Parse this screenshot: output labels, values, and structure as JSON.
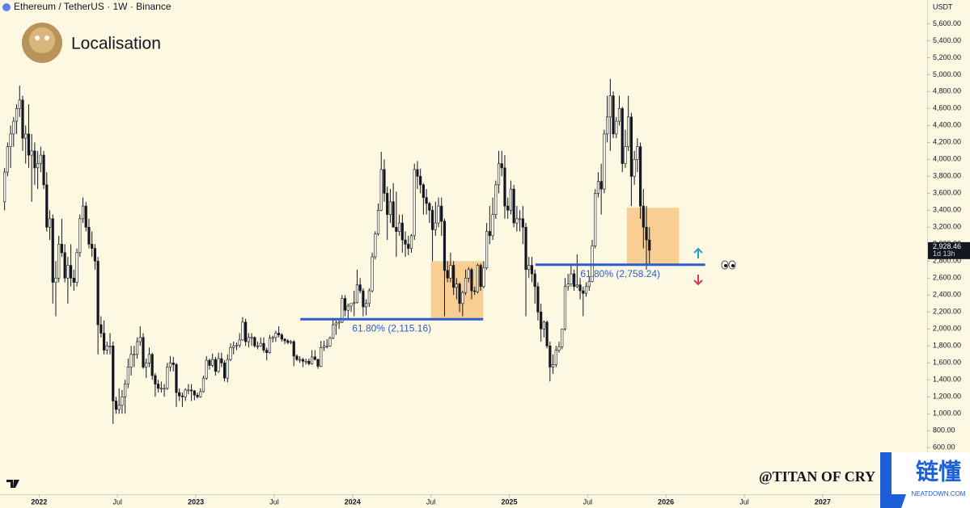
{
  "chart_data": {
    "type": "candlestick",
    "title": "Ethereum / TetherUS · 1W · Binance",
    "subtitle": "Localisation",
    "axis_unit": "USDT",
    "watermark": "@TITAN OF CRY",
    "logo": {
      "text": "链懂",
      "site": "NEATDOWN.COM"
    },
    "up_color": "#fffdf0",
    "down_color": "#131722",
    "grid": false,
    "ylim": [
      50,
      5880
    ],
    "yticks": [
      {
        "value": 600,
        "label": "600.00"
      },
      {
        "value": 800,
        "label": "800.00"
      },
      {
        "value": 1000,
        "label": "1,000.00"
      },
      {
        "value": 1200,
        "label": "1,200.00"
      },
      {
        "value": 1400,
        "label": "1,400.00"
      },
      {
        "value": 1600,
        "label": "1,600.00"
      },
      {
        "value": 1800,
        "label": "1,800.00"
      },
      {
        "value": 2000,
        "label": "2,000.00"
      },
      {
        "value": 2200,
        "label": "2,200.00"
      },
      {
        "value": 2400,
        "label": "2,400.00"
      },
      {
        "value": 2600,
        "label": "2,600.00"
      },
      {
        "value": 2800,
        "label": "2,800.00"
      },
      {
        "value": 3000,
        "label": "3,000.00"
      },
      {
        "value": 3200,
        "label": "3,200.00"
      },
      {
        "value": 3400,
        "label": "3,400.00"
      },
      {
        "value": 3600,
        "label": "3,600.00"
      },
      {
        "value": 3800,
        "label": "3,800.00"
      },
      {
        "value": 4000,
        "label": "4,000.00"
      },
      {
        "value": 4200,
        "label": "4,200.00"
      },
      {
        "value": 4400,
        "label": "4,400.00"
      },
      {
        "value": 4600,
        "label": "4,600.00"
      },
      {
        "value": 4800,
        "label": "4,800.00"
      },
      {
        "value": 5000,
        "label": "5,000.00"
      },
      {
        "value": 5200,
        "label": "5,200.00"
      },
      {
        "value": 5400,
        "label": "5,400.00"
      },
      {
        "value": 5600,
        "label": "5,600.00"
      }
    ],
    "xlim": [
      "2021-10",
      "2027-09"
    ],
    "xticks": [
      {
        "value": "2022-01",
        "label": "2022"
      },
      {
        "value": "2022-07",
        "label": "Jul"
      },
      {
        "value": "2023-01",
        "label": "2023"
      },
      {
        "value": "2023-07",
        "label": "Jul"
      },
      {
        "value": "2024-01",
        "label": "2024"
      },
      {
        "value": "2024-07",
        "label": "Jul"
      },
      {
        "value": "2025-01",
        "label": "2025"
      },
      {
        "value": "2025-07",
        "label": "Jul"
      },
      {
        "value": "2026-01",
        "label": "2026"
      },
      {
        "value": "2026-07",
        "label": "Jul"
      },
      {
        "value": "2027-01",
        "label": "2027"
      }
    ],
    "last_price": {
      "value": 2928.46,
      "label": "2,928.46",
      "countdown": "1d 13h"
    },
    "levels": [
      {
        "value": 2115.16,
        "label": "61.80% (2,115.16)",
        "x": [
          "2023-09",
          "2024-11"
        ],
        "color": "#2d5bd0"
      },
      {
        "value": 2758.24,
        "label": "61.80% (2,758.24)",
        "x": [
          "2025-03",
          "2026-04"
        ],
        "color": "#2d5bd0"
      }
    ],
    "boxes": [
      {
        "x": [
          "2024-07",
          "2024-10"
        ],
        "y": [
          2115,
          2800
        ],
        "color": "#f8c98a"
      },
      {
        "x": [
          "2025-10",
          "2026-01"
        ],
        "y": [
          2758,
          3430
        ],
        "color": "#f8c98a"
      }
    ],
    "candles": [
      [
        3500,
        3900,
        3400,
        3850
      ],
      [
        3850,
        4200,
        3800,
        4150
      ],
      [
        4150,
        4400,
        3900,
        4300
      ],
      [
        4300,
        4500,
        4150,
        4450
      ],
      [
        4450,
        4650,
        4300,
        4600
      ],
      [
        4600,
        4870,
        4500,
        4700
      ],
      [
        4700,
        4750,
        4100,
        4250
      ],
      [
        4250,
        4400,
        3950,
        4300
      ],
      [
        4300,
        4650,
        3900,
        4050
      ],
      [
        4050,
        4300,
        3500,
        4100
      ],
      [
        4100,
        4200,
        3700,
        3900
      ],
      [
        3900,
        4100,
        3650,
        3950
      ],
      [
        3950,
        4150,
        3850,
        4050
      ],
      [
        4050,
        4100,
        3650,
        3700
      ],
      [
        3700,
        3850,
        3150,
        3200
      ],
      [
        3200,
        3400,
        3050,
        3300
      ],
      [
        3300,
        3350,
        2300,
        2550
      ],
      [
        2550,
        2800,
        2150,
        2600
      ],
      [
        2600,
        3100,
        2550,
        3000
      ],
      [
        3000,
        3300,
        2850,
        2900
      ],
      [
        2900,
        3000,
        2550,
        2600
      ],
      [
        2600,
        2850,
        2300,
        2750
      ],
      [
        2750,
        3000,
        2500,
        2600
      ],
      [
        2600,
        2700,
        2450,
        2550
      ],
      [
        2550,
        2950,
        2500,
        2900
      ],
      [
        2900,
        3350,
        2850,
        3300
      ],
      [
        3300,
        3550,
        3250,
        3450
      ],
      [
        3450,
        3500,
        3150,
        3200
      ],
      [
        3200,
        3300,
        2950,
        3000
      ],
      [
        3000,
        3150,
        2850,
        2950
      ],
      [
        2950,
        3000,
        2700,
        2800
      ],
      [
        2800,
        2850,
        1700,
        2050
      ],
      [
        2050,
        2150,
        1900,
        1950
      ],
      [
        1950,
        2100,
        1700,
        1750
      ],
      [
        1750,
        1850,
        1700,
        1800
      ],
      [
        1800,
        1950,
        1700,
        1800
      ],
      [
        1800,
        1850,
        880,
        1150
      ],
      [
        1150,
        1200,
        1000,
        1050
      ],
      [
        1050,
        1300,
        1000,
        1100
      ],
      [
        1100,
        1280,
        1000,
        1200
      ],
      [
        1200,
        1400,
        1000,
        1350
      ],
      [
        1350,
        1650,
        1300,
        1550
      ],
      [
        1550,
        1800,
        1450,
        1700
      ],
      [
        1700,
        1800,
        1550,
        1700
      ],
      [
        1700,
        1900,
        1650,
        1850
      ],
      [
        1850,
        2030,
        1800,
        1900
      ],
      [
        1900,
        1950,
        1530,
        1550
      ],
      [
        1550,
        1650,
        1420,
        1600
      ],
      [
        1600,
        1780,
        1550,
        1700
      ],
      [
        1700,
        1720,
        1400,
        1450
      ],
      [
        1450,
        1480,
        1200,
        1350
      ],
      [
        1350,
        1400,
        1250,
        1300
      ],
      [
        1300,
        1380,
        1250,
        1300
      ],
      [
        1300,
        1350,
        1200,
        1300
      ],
      [
        1300,
        1600,
        1280,
        1550
      ],
      [
        1550,
        1680,
        1500,
        1600
      ],
      [
        1600,
        1670,
        1500,
        1580
      ],
      [
        1580,
        1600,
        1080,
        1250
      ],
      [
        1250,
        1300,
        1150,
        1210
      ],
      [
        1210,
        1250,
        1080,
        1200
      ],
      [
        1200,
        1300,
        1150,
        1280
      ],
      [
        1280,
        1350,
        1230,
        1280
      ],
      [
        1280,
        1350,
        1150,
        1270
      ],
      [
        1270,
        1280,
        1160,
        1220
      ],
      [
        1220,
        1250,
        1180,
        1200
      ],
      [
        1200,
        1300,
        1190,
        1260
      ],
      [
        1260,
        1450,
        1250,
        1420
      ],
      [
        1420,
        1680,
        1400,
        1630
      ],
      [
        1630,
        1650,
        1520,
        1570
      ],
      [
        1570,
        1710,
        1550,
        1640
      ],
      [
        1640,
        1670,
        1450,
        1500
      ],
      [
        1500,
        1720,
        1480,
        1650
      ],
      [
        1650,
        1720,
        1550,
        1600
      ],
      [
        1600,
        1630,
        1380,
        1420
      ],
      [
        1420,
        1700,
        1370,
        1640
      ],
      [
        1640,
        1830,
        1620,
        1780
      ],
      [
        1780,
        1850,
        1700,
        1800
      ],
      [
        1800,
        1840,
        1750,
        1810
      ],
      [
        1810,
        1950,
        1780,
        1870
      ],
      [
        1870,
        2140,
        1860,
        2080
      ],
      [
        2080,
        2120,
        1800,
        1850
      ],
      [
        1850,
        1950,
        1780,
        1900
      ],
      [
        1900,
        1950,
        1800,
        1900
      ],
      [
        1900,
        1910,
        1780,
        1800
      ],
      [
        1800,
        1850,
        1760,
        1800
      ],
      [
        1800,
        1900,
        1790,
        1830
      ],
      [
        1830,
        1900,
        1720,
        1750
      ],
      [
        1750,
        1780,
        1630,
        1720
      ],
      [
        1720,
        1930,
        1710,
        1890
      ],
      [
        1890,
        1920,
        1840,
        1900
      ],
      [
        1900,
        1980,
        1850,
        1950
      ],
      [
        1950,
        2030,
        1900,
        1930
      ],
      [
        1930,
        1950,
        1850,
        1880
      ],
      [
        1880,
        1890,
        1820,
        1860
      ],
      [
        1860,
        1880,
        1820,
        1840
      ],
      [
        1840,
        1870,
        1820,
        1850
      ],
      [
        1850,
        1870,
        1560,
        1680
      ],
      [
        1680,
        1700,
        1620,
        1640
      ],
      [
        1640,
        1680,
        1600,
        1640
      ],
      [
        1640,
        1660,
        1550,
        1620
      ],
      [
        1620,
        1650,
        1580,
        1620
      ],
      [
        1620,
        1650,
        1570,
        1590
      ],
      [
        1590,
        1750,
        1580,
        1670
      ],
      [
        1670,
        1750,
        1630,
        1640
      ],
      [
        1640,
        1650,
        1530,
        1560
      ],
      [
        1560,
        1860,
        1550,
        1780
      ],
      [
        1780,
        1860,
        1740,
        1800
      ],
      [
        1800,
        1880,
        1770,
        1800
      ],
      [
        1800,
        1910,
        1790,
        1890
      ],
      [
        1890,
        2130,
        1880,
        2050
      ],
      [
        2050,
        2100,
        1930,
        2070
      ],
      [
        2070,
        2100,
        2000,
        2080
      ],
      [
        2080,
        2400,
        2070,
        2360
      ],
      [
        2360,
        2400,
        2150,
        2220
      ],
      [
        2220,
        2300,
        2120,
        2270
      ],
      [
        2270,
        2300,
        2200,
        2300
      ],
      [
        2300,
        2450,
        2150,
        2310
      ],
      [
        2310,
        2700,
        2300,
        2520
      ],
      [
        2520,
        2600,
        2420,
        2450
      ],
      [
        2450,
        2480,
        2150,
        2260
      ],
      [
        2260,
        2350,
        2160,
        2300
      ],
      [
        2300,
        2480,
        2260,
        2450
      ],
      [
        2450,
        2900,
        2430,
        2850
      ],
      [
        2850,
        3150,
        2820,
        3120
      ],
      [
        3120,
        3480,
        3100,
        3400
      ],
      [
        3400,
        4090,
        3390,
        3880
      ],
      [
        3880,
        4000,
        3500,
        3600
      ],
      [
        3600,
        3680,
        3050,
        3350
      ],
      [
        3350,
        3650,
        3250,
        3500
      ],
      [
        3500,
        3720,
        3200,
        3200
      ],
      [
        3200,
        3620,
        2850,
        3150
      ],
      [
        3150,
        3350,
        3100,
        3250
      ],
      [
        3250,
        3350,
        2900,
        3050
      ],
      [
        3050,
        3150,
        2850,
        3000
      ],
      [
        3000,
        3100,
        2870,
        2950
      ],
      [
        2950,
        3120,
        2900,
        3100
      ],
      [
        3100,
        3950,
        3050,
        3880
      ],
      [
        3880,
        3980,
        3650,
        3800
      ],
      [
        3800,
        3890,
        3600,
        3700
      ],
      [
        3700,
        3720,
        3350,
        3550
      ],
      [
        3550,
        3650,
        3350,
        3480
      ],
      [
        3480,
        3500,
        3250,
        3400
      ],
      [
        3400,
        3450,
        2800,
        3170
      ],
      [
        3170,
        3500,
        3100,
        3250
      ],
      [
        3250,
        3550,
        3200,
        3450
      ],
      [
        3450,
        3550,
        3100,
        3270
      ],
      [
        3270,
        3300,
        2150,
        2690
      ],
      [
        2690,
        2800,
        2550,
        2600
      ],
      [
        2600,
        2900,
        2550,
        2750
      ],
      [
        2750,
        2800,
        2400,
        2490
      ],
      [
        2490,
        2600,
        2350,
        2530
      ],
      [
        2530,
        2550,
        2200,
        2300
      ],
      [
        2300,
        2450,
        2150,
        2430
      ],
      [
        2430,
        2700,
        2400,
        2600
      ],
      [
        2600,
        2730,
        2550,
        2700
      ],
      [
        2700,
        2720,
        2350,
        2450
      ],
      [
        2450,
        2500,
        2400,
        2440
      ],
      [
        2440,
        2770,
        2420,
        2750
      ],
      [
        2750,
        2770,
        2450,
        2500
      ],
      [
        2500,
        2800,
        2480,
        2720
      ],
      [
        2720,
        3250,
        2700,
        3150
      ],
      [
        3150,
        3450,
        3000,
        3100
      ],
      [
        3100,
        3550,
        3050,
        3350
      ],
      [
        3350,
        3750,
        3300,
        3700
      ],
      [
        3700,
        4100,
        3600,
        3950
      ],
      [
        3950,
        4100,
        3800,
        3900
      ],
      [
        3900,
        4050,
        3300,
        3450
      ],
      [
        3450,
        3550,
        3300,
        3400
      ],
      [
        3400,
        3750,
        3350,
        3650
      ],
      [
        3650,
        3700,
        3200,
        3250
      ],
      [
        3250,
        3450,
        3150,
        3300
      ],
      [
        3300,
        3400,
        3150,
        3300
      ],
      [
        3300,
        3450,
        3000,
        3200
      ],
      [
        3200,
        3250,
        2150,
        2700
      ],
      [
        2700,
        2850,
        2600,
        2750
      ],
      [
        2750,
        2850,
        2550,
        2650
      ],
      [
        2650,
        2700,
        2300,
        2500
      ],
      [
        2500,
        2550,
        2100,
        2200
      ],
      [
        2200,
        2300,
        1850,
        2000
      ],
      [
        2000,
        2100,
        1900,
        2080
      ],
      [
        2080,
        2100,
        1770,
        1800
      ],
      [
        1800,
        1850,
        1380,
        1550
      ],
      [
        1550,
        1700,
        1470,
        1580
      ],
      [
        1580,
        1800,
        1550,
        1750
      ],
      [
        1750,
        1850,
        1720,
        1790
      ],
      [
        1790,
        2000,
        1760,
        2000
      ],
      [
        2000,
        2600,
        1980,
        2500
      ],
      [
        2500,
        2650,
        2450,
        2530
      ],
      [
        2530,
        2750,
        2500,
        2650
      ],
      [
        2650,
        2700,
        2450,
        2500
      ],
      [
        2500,
        2880,
        2480,
        2520
      ],
      [
        2520,
        2600,
        2350,
        2450
      ],
      [
        2450,
        2500,
        2150,
        2420
      ],
      [
        2420,
        2550,
        2380,
        2500
      ],
      [
        2500,
        2620,
        2450,
        2560
      ],
      [
        2560,
        3050,
        2550,
        2980
      ],
      [
        2980,
        3650,
        2950,
        3600
      ],
      [
        3600,
        3850,
        3550,
        3740
      ],
      [
        3740,
        3950,
        3350,
        3650
      ],
      [
        3650,
        4350,
        3600,
        4300
      ],
      [
        4300,
        4750,
        4200,
        4500
      ],
      [
        4500,
        4950,
        4100,
        4750
      ],
      [
        4750,
        4800,
        4250,
        4300
      ],
      [
        4300,
        4500,
        4250,
        4450
      ],
      [
        4450,
        4750,
        4400,
        4600
      ],
      [
        4600,
        4620,
        3850,
        3950
      ],
      [
        3950,
        4350,
        3900,
        4150
      ],
      [
        4150,
        4750,
        4100,
        4500
      ],
      [
        4500,
        4550,
        3450,
        3800
      ],
      [
        3800,
        4100,
        3700,
        4000
      ],
      [
        4000,
        4250,
        3850,
        4150
      ],
      [
        4150,
        4200,
        3300,
        3450
      ],
      [
        3450,
        3650,
        2950,
        3200
      ],
      [
        3200,
        3450,
        2700,
        3050
      ],
      [
        3050,
        3200,
        2750,
        2928.46
      ]
    ]
  }
}
